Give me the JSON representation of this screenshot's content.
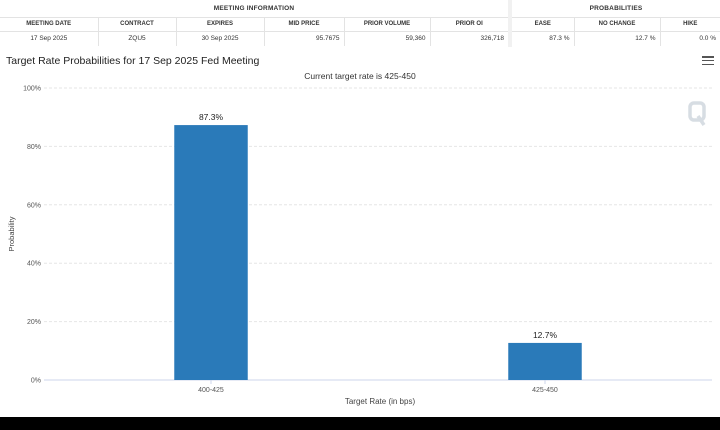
{
  "meeting_info": {
    "title": "MEETING INFORMATION",
    "headers": [
      "MEETING DATE",
      "CONTRACT",
      "EXPIRES",
      "MID PRICE",
      "PRIOR VOLUME",
      "PRIOR OI"
    ],
    "row": [
      "17 Sep 2025",
      "ZQU5",
      "30 Sep 2025",
      "95.7675",
      "59,360",
      "326,718"
    ]
  },
  "probabilities": {
    "title": "PROBABILITIES",
    "headers": [
      "EASE",
      "NO CHANGE",
      "HIKE"
    ],
    "row": [
      "87.3 %",
      "12.7 %",
      "0.0 %"
    ]
  },
  "chart_data": {
    "type": "bar",
    "title": "Target Rate Probabilities for 17 Sep 2025 Fed Meeting",
    "subtitle": "Current target rate is 425-450",
    "categories": [
      "400-425",
      "425-450"
    ],
    "values": [
      87.3,
      12.7
    ],
    "data_labels": [
      "87.3%",
      "12.7%"
    ],
    "xlabel": "Target Rate (in bps)",
    "ylabel": "Probability",
    "ylim": [
      0,
      100
    ],
    "yticks": [
      "0%",
      "20%",
      "40%",
      "60%",
      "80%",
      "100%"
    ],
    "grid": true,
    "bar_color": "#2a7ab9"
  },
  "icons": {
    "menu": "hamburger-menu-icon",
    "watermark": "quikstrike-logo-icon"
  }
}
